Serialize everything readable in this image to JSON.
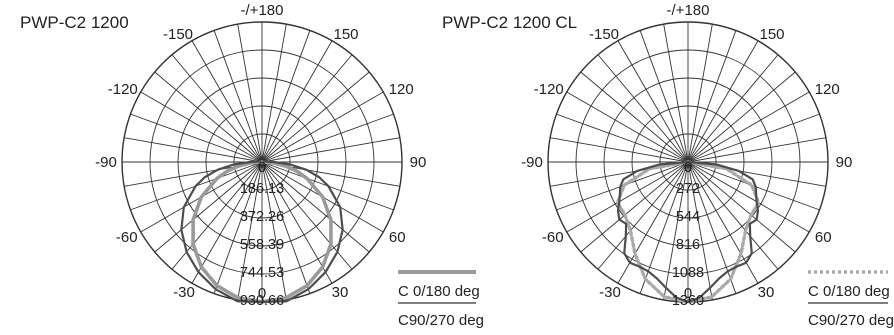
{
  "chart_data": [
    {
      "type": "polar",
      "title": "PWP-C2 1200",
      "angle_labels": [
        "-/+180",
        "150",
        "120",
        "90",
        "60",
        "30",
        "0",
        "-30",
        "-60",
        "-90",
        "-120",
        "-150"
      ],
      "radial_labels": [
        "186.13",
        "372.26",
        "558.39",
        "744.53",
        "930.66"
      ],
      "rmax": 930.66,
      "legend": [
        "C  0/180 deg",
        "C90/270 deg"
      ],
      "series": [
        {
          "name": "C  0/180 deg",
          "color": "#9a9a9a",
          "dash": "solid",
          "angles": [
            0,
            10,
            20,
            30,
            40,
            50,
            60,
            70,
            75,
            80,
            85,
            90
          ],
          "values": [
            930,
            917,
            875,
            806,
            713,
            598,
            466,
            318,
            242,
            162,
            82,
            0
          ]
        },
        {
          "name": "C90/270 deg",
          "color": "#4d4d4d",
          "dash": "solid",
          "angles": [
            0,
            10,
            20,
            30,
            40,
            50,
            60,
            70,
            75,
            80,
            85,
            90,
            95,
            100,
            105
          ],
          "values": [
            930,
            940,
            900,
            845,
            780,
            700,
            600,
            470,
            395,
            300,
            190,
            80,
            30,
            22,
            12
          ]
        }
      ]
    },
    {
      "type": "polar",
      "title": "PWP-C2 1200 CL",
      "angle_labels": [
        "-/+180",
        "150",
        "120",
        "90",
        "60",
        "30",
        "0",
        "-30",
        "-60",
        "-90",
        "-120",
        "-150"
      ],
      "radial_labels": [
        "272",
        "544",
        "816",
        "1088",
        "1360"
      ],
      "rmax": 1360,
      "legend": [
        "C  0/180 deg",
        "C90/270 deg"
      ],
      "series": [
        {
          "name": "C  0/180 deg",
          "color": "#a9a9a9",
          "dash": "dotted",
          "angles": [
            0,
            10,
            20,
            30,
            40,
            50,
            60,
            70,
            80,
            90
          ],
          "values": [
            1360,
            1330,
            1210,
            1030,
            870,
            800,
            790,
            660,
            380,
            0
          ]
        },
        {
          "name": "C90/270 deg",
          "color": "#4d4d4d",
          "dash": "solid",
          "angles": [
            0,
            5,
            10,
            15,
            20,
            25,
            30,
            35,
            40,
            45,
            50,
            55,
            60,
            65,
            70,
            75,
            80,
            85,
            90
          ],
          "values": [
            1360,
            1320,
            1240,
            1170,
            1130,
            1120,
            1130,
            1080,
            940,
            850,
            870,
            830,
            770,
            730,
            700,
            650,
            500,
            280,
            0
          ]
        }
      ]
    }
  ]
}
